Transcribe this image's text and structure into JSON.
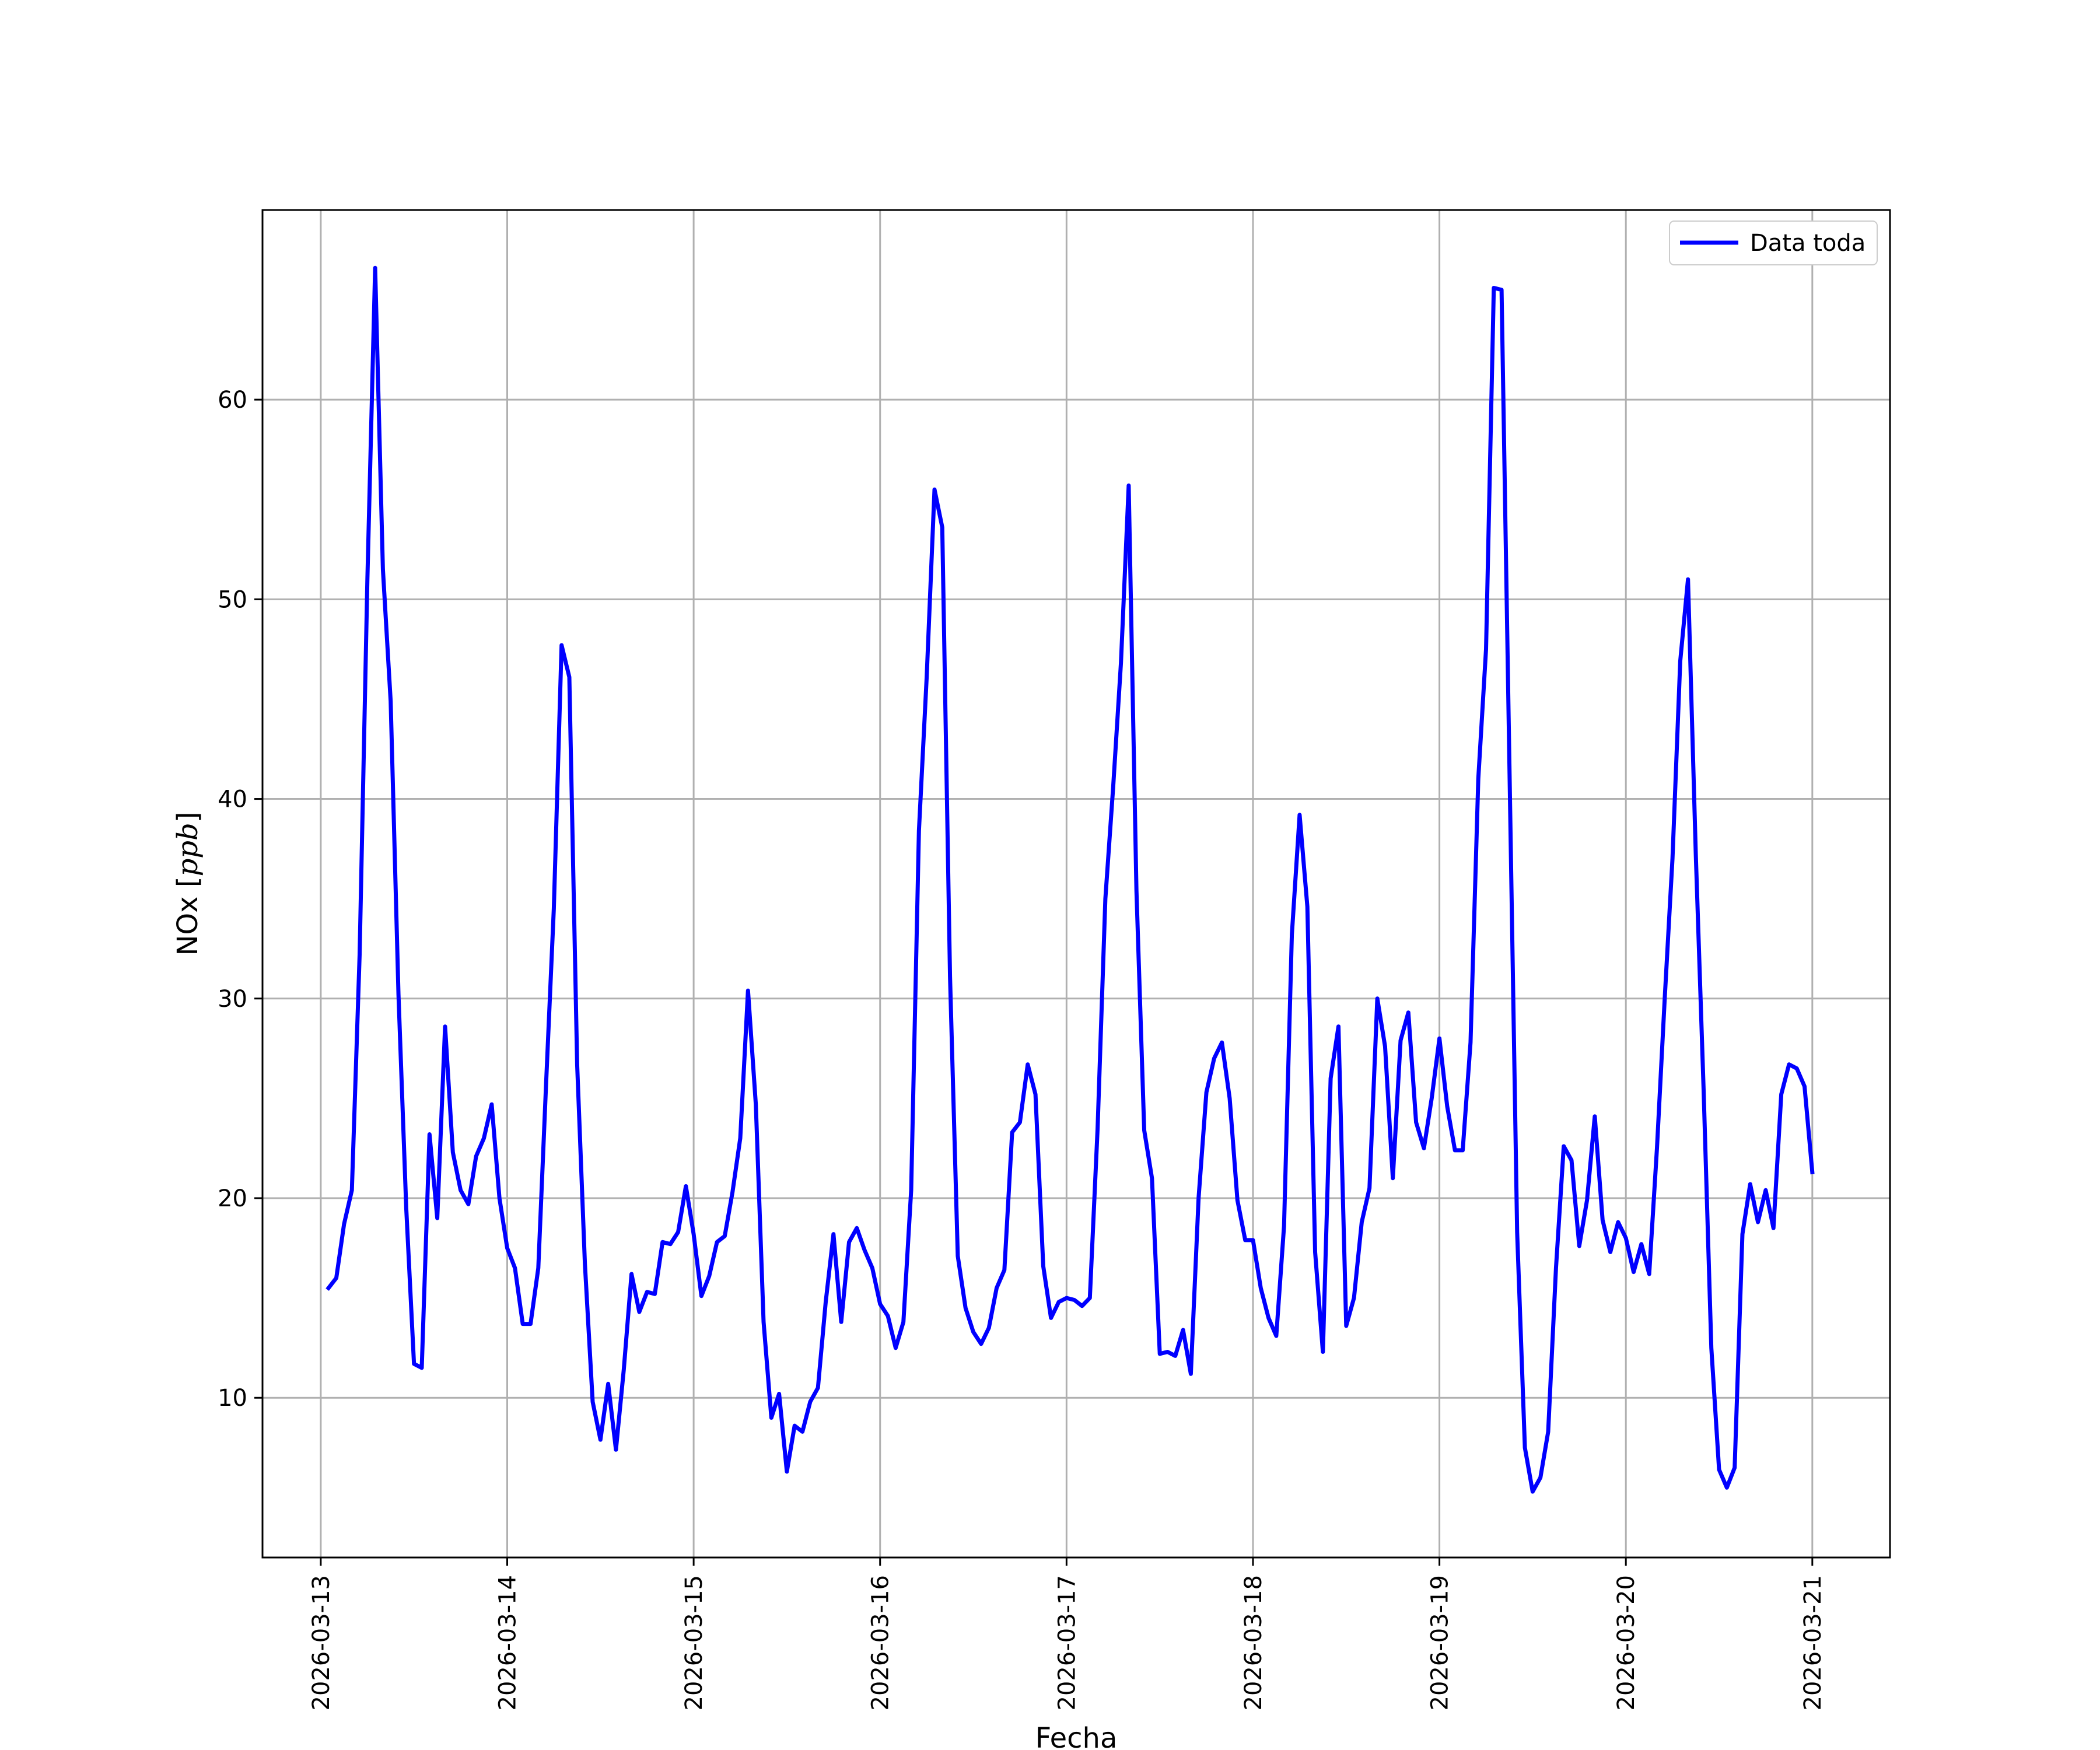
{
  "chart_data": {
    "type": "line",
    "title": "",
    "xlabel": "Fecha",
    "ylabel": "NOx [ppb]",
    "ylabel_parts": {
      "prefix": "NOx ",
      "unit": "ppb"
    },
    "xlim": [
      "2026-03-12T16:30",
      "2026-03-21T10:00"
    ],
    "ylim": [
      2.0,
      69.5
    ],
    "grid": true,
    "legend": {
      "placement": "upper right"
    },
    "x_ticks": [
      "2026-03-13",
      "2026-03-14",
      "2026-03-15",
      "2026-03-16",
      "2026-03-17",
      "2026-03-18",
      "2026-03-19",
      "2026-03-20",
      "2026-03-21"
    ],
    "y_ticks": [
      10,
      20,
      30,
      40,
      50,
      60
    ],
    "colors": {
      "series": "#0000ff",
      "grid": "#b0b0b0",
      "axes": "#000000"
    },
    "series": [
      {
        "name": "Data toda",
        "color": "#0000ff",
        "points": [
          [
            "2026-03-13T01:00",
            15.5
          ],
          [
            "2026-03-13T02:00",
            16.0
          ],
          [
            "2026-03-13T03:00",
            18.7
          ],
          [
            "2026-03-13T04:00",
            20.4
          ],
          [
            "2026-03-13T05:00",
            32.2
          ],
          [
            "2026-03-13T06:00",
            51.0
          ],
          [
            "2026-03-13T07:00",
            66.6
          ],
          [
            "2026-03-13T08:00",
            51.5
          ],
          [
            "2026-03-13T09:00",
            44.9
          ],
          [
            "2026-03-13T10:00",
            30.2
          ],
          [
            "2026-03-13T11:00",
            19.5
          ],
          [
            "2026-03-13T12:00",
            11.7
          ],
          [
            "2026-03-13T13:00",
            11.5
          ],
          [
            "2026-03-13T14:00",
            23.2
          ],
          [
            "2026-03-13T15:00",
            19.0
          ],
          [
            "2026-03-13T16:00",
            28.6
          ],
          [
            "2026-03-13T17:00",
            22.3
          ],
          [
            "2026-03-13T18:00",
            20.4
          ],
          [
            "2026-03-13T19:00",
            19.7
          ],
          [
            "2026-03-13T20:00",
            22.1
          ],
          [
            "2026-03-13T21:00",
            23.0
          ],
          [
            "2026-03-13T22:00",
            24.7
          ],
          [
            "2026-03-13T23:00",
            20.0
          ],
          [
            "2026-03-14T00:00",
            17.5
          ],
          [
            "2026-03-14T01:00",
            16.5
          ],
          [
            "2026-03-14T02:00",
            13.7
          ],
          [
            "2026-03-14T03:00",
            13.7
          ],
          [
            "2026-03-14T04:00",
            16.5
          ],
          [
            "2026-03-14T05:00",
            25.7
          ],
          [
            "2026-03-14T06:00",
            34.5
          ],
          [
            "2026-03-14T07:00",
            47.7
          ],
          [
            "2026-03-14T08:00",
            46.1
          ],
          [
            "2026-03-14T09:00",
            26.7
          ],
          [
            "2026-03-14T10:00",
            16.7
          ],
          [
            "2026-03-14T11:00",
            9.8
          ],
          [
            "2026-03-14T12:00",
            7.9
          ],
          [
            "2026-03-14T13:00",
            10.7
          ],
          [
            "2026-03-14T14:00",
            7.4
          ],
          [
            "2026-03-14T15:00",
            11.4
          ],
          [
            "2026-03-14T16:00",
            16.2
          ],
          [
            "2026-03-14T17:00",
            14.3
          ],
          [
            "2026-03-14T18:00",
            15.3
          ],
          [
            "2026-03-14T19:00",
            15.2
          ],
          [
            "2026-03-14T20:00",
            17.8
          ],
          [
            "2026-03-14T21:00",
            17.7
          ],
          [
            "2026-03-14T22:00",
            18.3
          ],
          [
            "2026-03-14T23:00",
            20.6
          ],
          [
            "2026-03-15T00:00",
            18.2
          ],
          [
            "2026-03-15T01:00",
            15.1
          ],
          [
            "2026-03-15T02:00",
            16.1
          ],
          [
            "2026-03-15T03:00",
            17.8
          ],
          [
            "2026-03-15T04:00",
            18.1
          ],
          [
            "2026-03-15T05:00",
            20.3
          ],
          [
            "2026-03-15T06:00",
            23.0
          ],
          [
            "2026-03-15T07:00",
            30.4
          ],
          [
            "2026-03-15T08:00",
            24.7
          ],
          [
            "2026-03-15T09:00",
            13.8
          ],
          [
            "2026-03-15T10:00",
            9.0
          ],
          [
            "2026-03-15T11:00",
            10.2
          ],
          [
            "2026-03-15T12:00",
            6.3
          ],
          [
            "2026-03-15T13:00",
            8.6
          ],
          [
            "2026-03-15T14:00",
            8.3
          ],
          [
            "2026-03-15T15:00",
            9.8
          ],
          [
            "2026-03-15T16:00",
            10.5
          ],
          [
            "2026-03-15T17:00",
            14.8
          ],
          [
            "2026-03-15T18:00",
            18.2
          ],
          [
            "2026-03-15T19:00",
            13.8
          ],
          [
            "2026-03-15T20:00",
            17.8
          ],
          [
            "2026-03-15T21:00",
            18.5
          ],
          [
            "2026-03-15T22:00",
            17.4
          ],
          [
            "2026-03-15T23:00",
            16.5
          ],
          [
            "2026-03-16T00:00",
            14.7
          ],
          [
            "2026-03-16T01:00",
            14.1
          ],
          [
            "2026-03-16T02:00",
            12.5
          ],
          [
            "2026-03-16T03:00",
            13.8
          ],
          [
            "2026-03-16T04:00",
            20.4
          ],
          [
            "2026-03-16T05:00",
            38.4
          ],
          [
            "2026-03-16T06:00",
            46.1
          ],
          [
            "2026-03-16T07:00",
            55.5
          ],
          [
            "2026-03-16T08:00",
            53.6
          ],
          [
            "2026-03-16T09:00",
            31.1
          ],
          [
            "2026-03-16T10:00",
            17.1
          ],
          [
            "2026-03-16T11:00",
            14.5
          ],
          [
            "2026-03-16T12:00",
            13.3
          ],
          [
            "2026-03-16T13:00",
            12.7
          ],
          [
            "2026-03-16T14:00",
            13.5
          ],
          [
            "2026-03-16T15:00",
            15.5
          ],
          [
            "2026-03-16T16:00",
            16.4
          ],
          [
            "2026-03-16T17:00",
            23.3
          ],
          [
            "2026-03-16T18:00",
            23.8
          ],
          [
            "2026-03-16T19:00",
            26.7
          ],
          [
            "2026-03-16T20:00",
            25.2
          ],
          [
            "2026-03-16T21:00",
            16.6
          ],
          [
            "2026-03-16T22:00",
            14.0
          ],
          [
            "2026-03-16T23:00",
            14.8
          ],
          [
            "2026-03-17T00:00",
            15.0
          ],
          [
            "2026-03-17T01:00",
            14.9
          ],
          [
            "2026-03-17T02:00",
            14.6
          ],
          [
            "2026-03-17T03:00",
            15.0
          ],
          [
            "2026-03-17T04:00",
            23.5
          ],
          [
            "2026-03-17T05:00",
            35.0
          ],
          [
            "2026-03-17T06:00",
            40.6
          ],
          [
            "2026-03-17T07:00",
            46.8
          ],
          [
            "2026-03-17T08:00",
            55.7
          ],
          [
            "2026-03-17T09:00",
            35.4
          ],
          [
            "2026-03-17T10:00",
            23.4
          ],
          [
            "2026-03-17T11:00",
            21.0
          ],
          [
            "2026-03-17T12:00",
            12.2
          ],
          [
            "2026-03-17T13:00",
            12.3
          ],
          [
            "2026-03-17T14:00",
            12.1
          ],
          [
            "2026-03-17T15:00",
            13.4
          ],
          [
            "2026-03-17T16:00",
            11.2
          ],
          [
            "2026-03-17T17:00",
            20.0
          ],
          [
            "2026-03-17T18:00",
            25.3
          ],
          [
            "2026-03-17T19:00",
            27.0
          ],
          [
            "2026-03-17T20:00",
            27.8
          ],
          [
            "2026-03-17T21:00",
            25.0
          ],
          [
            "2026-03-17T22:00",
            19.9
          ],
          [
            "2026-03-17T23:00",
            17.9
          ],
          [
            "2026-03-18T00:00",
            17.9
          ],
          [
            "2026-03-18T01:00",
            15.5
          ],
          [
            "2026-03-18T02:00",
            14.0
          ],
          [
            "2026-03-18T03:00",
            13.1
          ],
          [
            "2026-03-18T04:00",
            18.6
          ],
          [
            "2026-03-18T05:00",
            33.2
          ],
          [
            "2026-03-18T06:00",
            39.2
          ],
          [
            "2026-03-18T07:00",
            34.6
          ],
          [
            "2026-03-18T08:00",
            17.3
          ],
          [
            "2026-03-18T09:00",
            12.3
          ],
          [
            "2026-03-18T10:00",
            26.0
          ],
          [
            "2026-03-18T11:00",
            28.6
          ],
          [
            "2026-03-18T12:00",
            13.6
          ],
          [
            "2026-03-18T13:00",
            15.0
          ],
          [
            "2026-03-18T14:00",
            18.8
          ],
          [
            "2026-03-18T15:00",
            20.5
          ],
          [
            "2026-03-18T16:00",
            30.0
          ],
          [
            "2026-03-18T17:00",
            27.6
          ],
          [
            "2026-03-18T18:00",
            21.0
          ],
          [
            "2026-03-18T19:00",
            27.9
          ],
          [
            "2026-03-18T20:00",
            29.3
          ],
          [
            "2026-03-18T21:00",
            23.8
          ],
          [
            "2026-03-18T22:00",
            22.5
          ],
          [
            "2026-03-18T23:00",
            25.0
          ],
          [
            "2026-03-19T00:00",
            28.0
          ],
          [
            "2026-03-19T01:00",
            24.6
          ],
          [
            "2026-03-19T02:00",
            22.4
          ],
          [
            "2026-03-19T03:00",
            22.4
          ],
          [
            "2026-03-19T04:00",
            27.8
          ],
          [
            "2026-03-19T05:00",
            41.0
          ],
          [
            "2026-03-19T06:00",
            47.5
          ],
          [
            "2026-03-19T07:00",
            65.6
          ],
          [
            "2026-03-19T08:00",
            65.5
          ],
          [
            "2026-03-19T09:00",
            42.0
          ],
          [
            "2026-03-19T10:00",
            18.3
          ],
          [
            "2026-03-19T11:00",
            7.5
          ],
          [
            "2026-03-19T12:00",
            5.3
          ],
          [
            "2026-03-19T13:00",
            6.0
          ],
          [
            "2026-03-19T14:00",
            8.3
          ],
          [
            "2026-03-19T15:00",
            16.5
          ],
          [
            "2026-03-19T16:00",
            22.6
          ],
          [
            "2026-03-19T17:00",
            21.9
          ],
          [
            "2026-03-19T18:00",
            17.6
          ],
          [
            "2026-03-19T19:00",
            19.9
          ],
          [
            "2026-03-19T20:00",
            24.1
          ],
          [
            "2026-03-19T21:00",
            18.9
          ],
          [
            "2026-03-19T22:00",
            17.3
          ],
          [
            "2026-03-19T23:00",
            18.8
          ],
          [
            "2026-03-20T00:00",
            18.0
          ],
          [
            "2026-03-20T01:00",
            16.3
          ],
          [
            "2026-03-20T02:00",
            17.7
          ],
          [
            "2026-03-20T03:00",
            16.2
          ],
          [
            "2026-03-20T04:00",
            22.5
          ],
          [
            "2026-03-20T05:00",
            30.0
          ],
          [
            "2026-03-20T06:00",
            37.0
          ],
          [
            "2026-03-20T07:00",
            46.9
          ],
          [
            "2026-03-20T08:00",
            51.0
          ],
          [
            "2026-03-20T09:00",
            37.2
          ],
          [
            "2026-03-20T10:00",
            25.5
          ],
          [
            "2026-03-20T11:00",
            12.5
          ],
          [
            "2026-03-20T12:00",
            6.4
          ],
          [
            "2026-03-20T13:00",
            5.5
          ],
          [
            "2026-03-20T14:00",
            6.5
          ],
          [
            "2026-03-20T15:00",
            18.2
          ],
          [
            "2026-03-20T16:00",
            20.7
          ],
          [
            "2026-03-20T17:00",
            18.8
          ],
          [
            "2026-03-20T18:00",
            20.4
          ],
          [
            "2026-03-20T19:00",
            18.5
          ],
          [
            "2026-03-20T20:00",
            25.2
          ],
          [
            "2026-03-20T21:00",
            26.7
          ],
          [
            "2026-03-20T22:00",
            26.5
          ],
          [
            "2026-03-20T23:00",
            25.6
          ],
          [
            "2026-03-21T00:00",
            21.3
          ]
        ]
      }
    ]
  }
}
